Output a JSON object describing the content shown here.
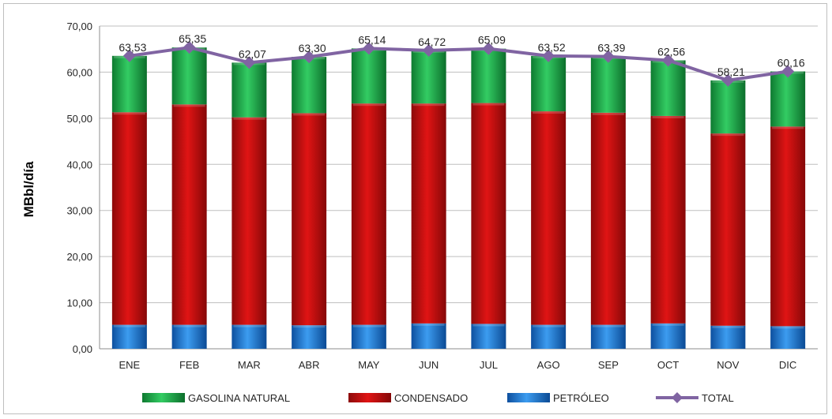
{
  "chart_data": {
    "type": "bar",
    "stacked": true,
    "title": "",
    "xlabel": "",
    "ylabel": "MBbl/día",
    "ylim": [
      0,
      70
    ],
    "yticks": [
      "0,00",
      "10,00",
      "20,00",
      "30,00",
      "40,00",
      "50,00",
      "60,00",
      "70,00"
    ],
    "grid": true,
    "legend_position": "bottom",
    "categories": [
      "ENE",
      "FEB",
      "MAR",
      "ABR",
      "MAY",
      "JUN",
      "JUL",
      "AGO",
      "SEP",
      "OCT",
      "NOV",
      "DIC"
    ],
    "series": [
      {
        "name": "PETRÓLEO",
        "color": "#1f77d4",
        "values": [
          5.2,
          5.2,
          5.2,
          5.1,
          5.2,
          5.5,
          5.4,
          5.2,
          5.2,
          5.5,
          5.0,
          4.9
        ]
      },
      {
        "name": "CONDENSADO",
        "color": "#d40f0f",
        "values": [
          46.1,
          47.8,
          45.0,
          46.0,
          48.0,
          47.7,
          47.9,
          46.3,
          46.0,
          45.0,
          41.7,
          43.3
        ]
      },
      {
        "name": "GASOLINA NATURAL",
        "color": "#1fb34a",
        "values": [
          12.23,
          12.35,
          11.87,
          12.2,
          11.94,
          11.52,
          11.79,
          12.02,
          12.19,
          12.06,
          11.51,
          11.96
        ]
      }
    ],
    "total": {
      "name": "TOTAL",
      "color": "#8064a2",
      "values": [
        63.53,
        65.35,
        62.07,
        63.3,
        65.14,
        64.72,
        65.09,
        63.52,
        63.39,
        62.56,
        58.21,
        60.16
      ],
      "labels": [
        "63,53",
        "65,35",
        "62,07",
        "63,30",
        "65,14",
        "64,72",
        "65,09",
        "63,52",
        "63,39",
        "62,56",
        "58,21",
        "60,16"
      ]
    },
    "legend_order": [
      "GASOLINA NATURAL",
      "CONDENSADO",
      "PETRÓLEO",
      "TOTAL"
    ]
  }
}
